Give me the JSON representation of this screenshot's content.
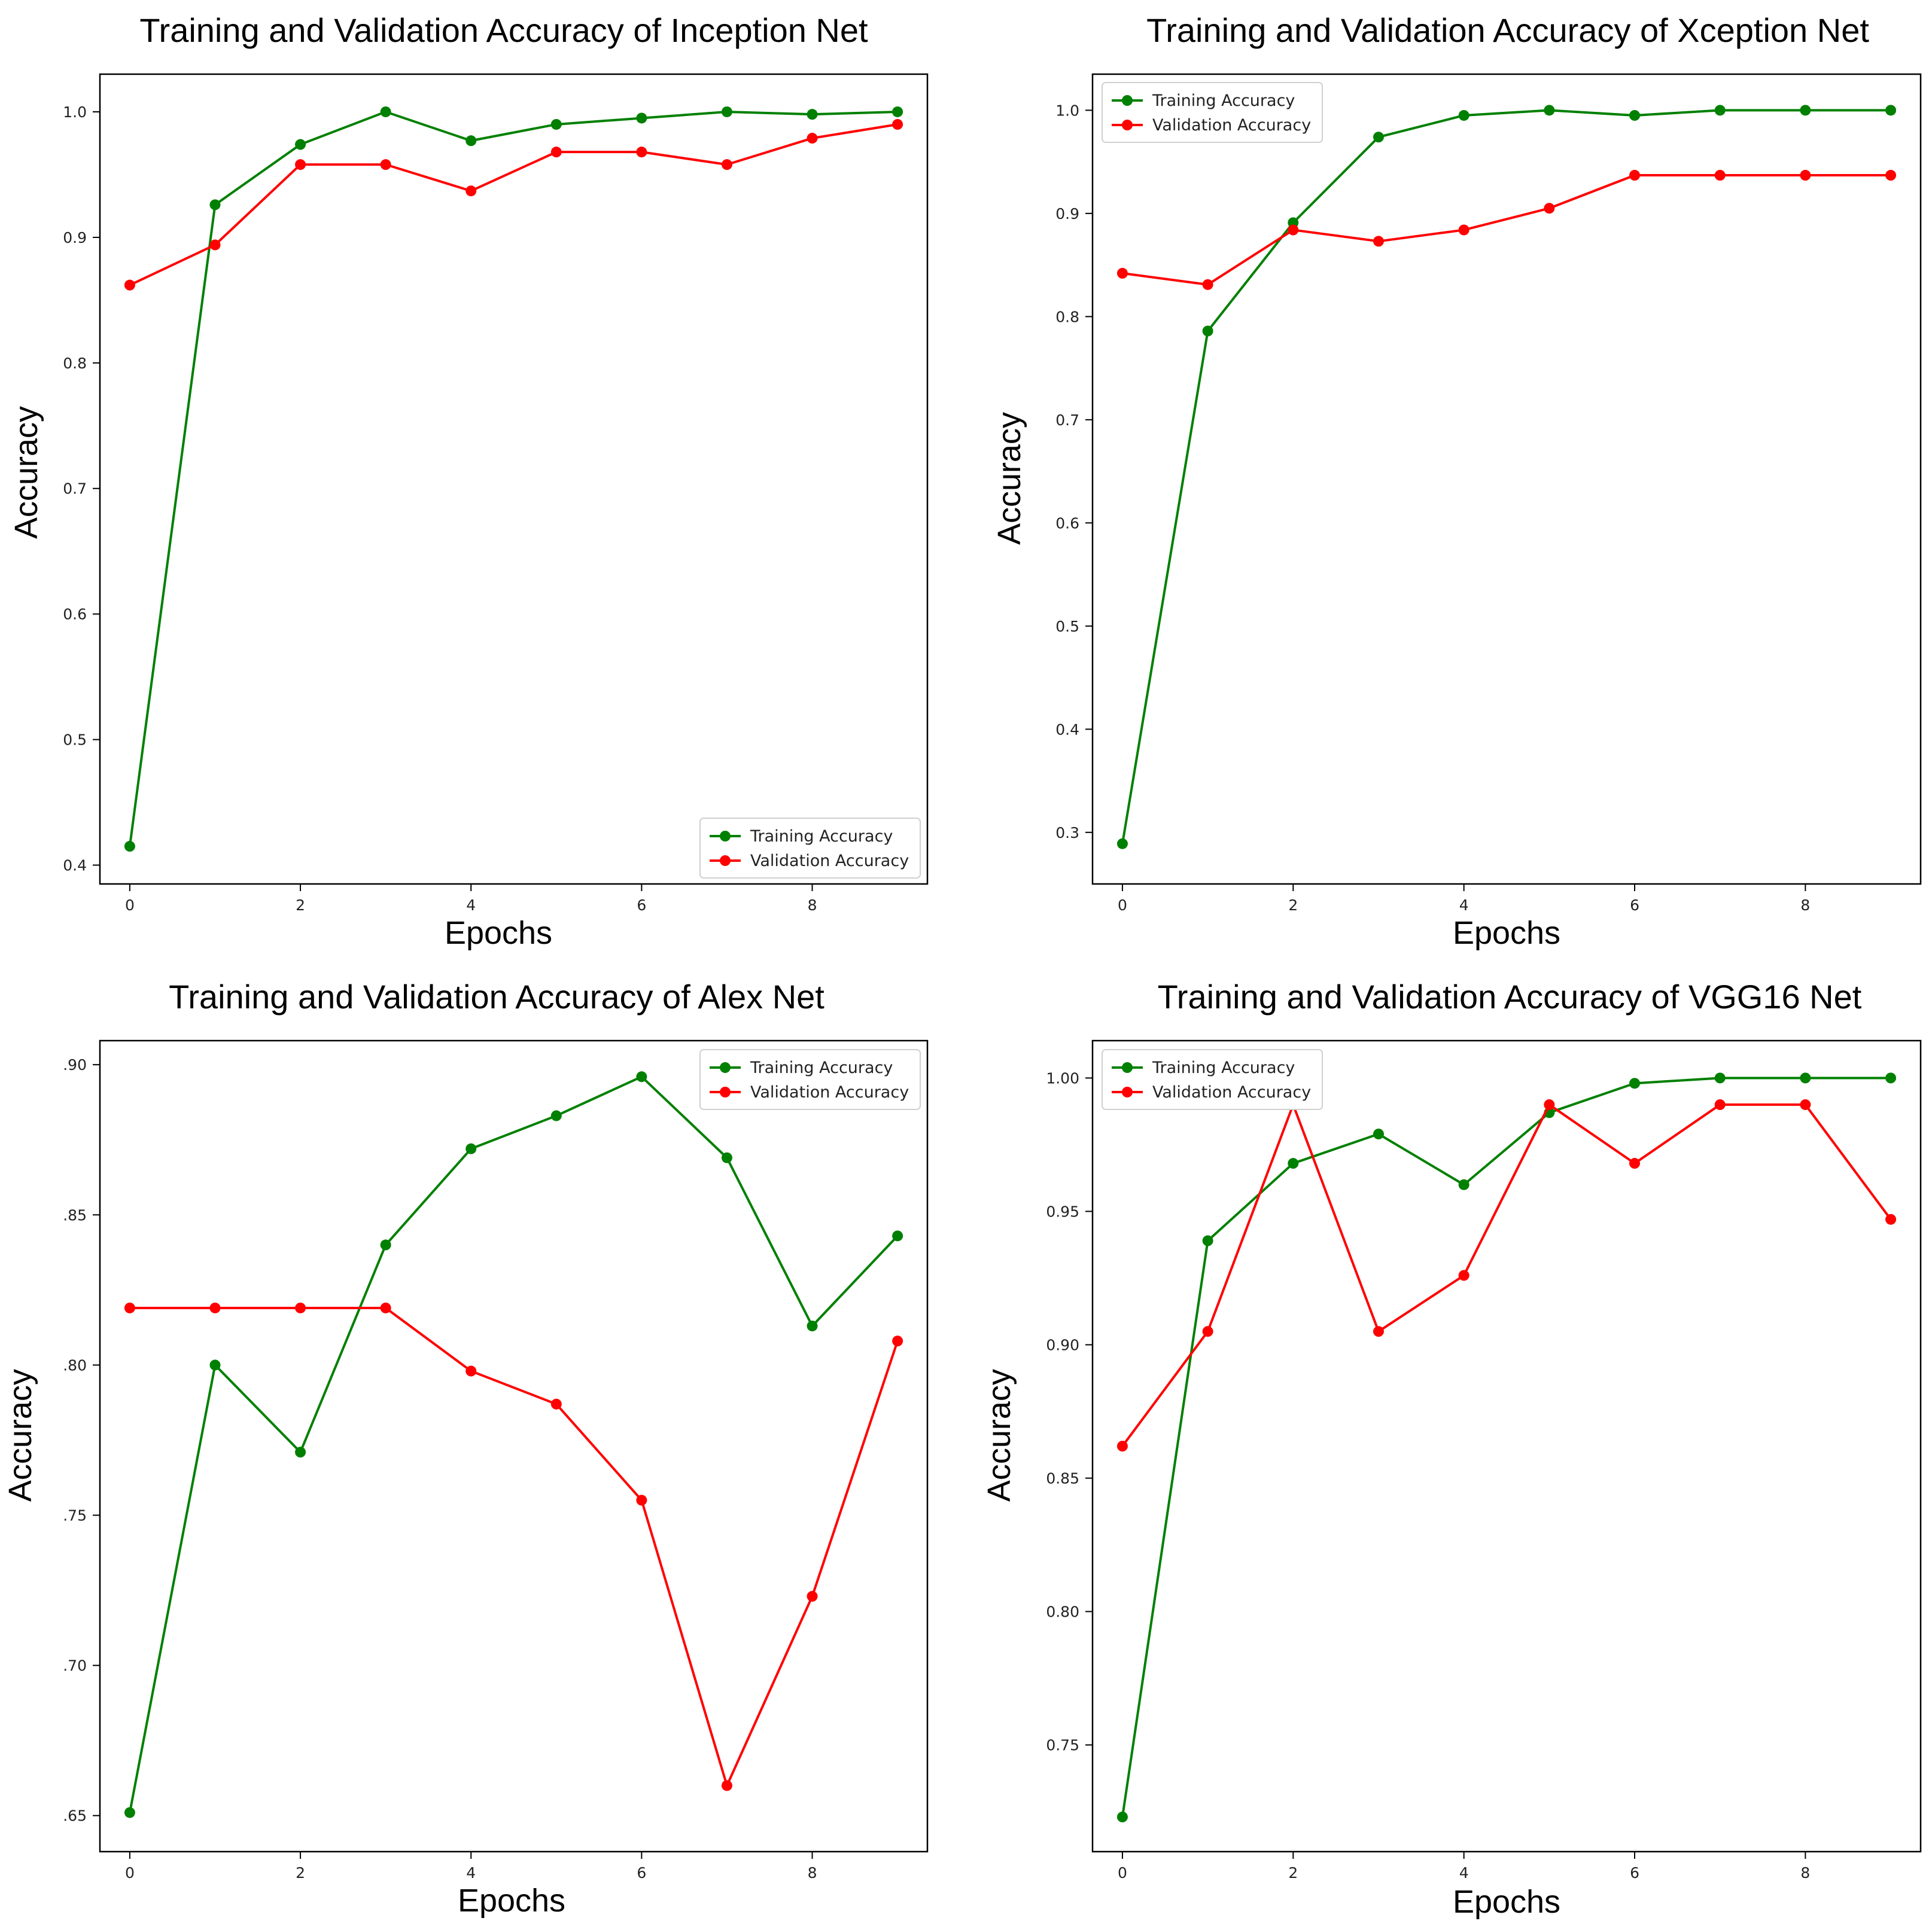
{
  "chart_data": [
    {
      "type": "line",
      "title": "Training and Validation Accuracy of Inception Net",
      "xlabel": "Epochs",
      "ylabel": "Accuracy",
      "x": [
        0,
        1,
        2,
        3,
        4,
        5,
        6,
        7,
        8,
        9
      ],
      "xticks": [
        0,
        2,
        4,
        6,
        8
      ],
      "xtick_labels": [
        "0",
        "2",
        "4",
        "6",
        "8"
      ],
      "xlim": [
        -0.35,
        9.35
      ],
      "ylim": [
        0.385,
        1.03
      ],
      "yticks": [
        0.4,
        0.5,
        0.6,
        0.7,
        0.8,
        0.9,
        1.0
      ],
      "ytick_labels": [
        "0.4",
        "0.5",
        "0.6",
        "0.7",
        "0.8",
        "0.9",
        "1.0"
      ],
      "legend_position": "bottom-right",
      "series": [
        {
          "name": "Training Accuracy",
          "color": "#008000",
          "values": [
            0.415,
            0.926,
            0.974,
            1.0,
            0.977,
            0.99,
            0.995,
            1.0,
            0.998,
            1.0
          ]
        },
        {
          "name": "Validation Accuracy",
          "color": "#ff0000",
          "values": [
            0.862,
            0.894,
            0.958,
            0.958,
            0.937,
            0.968,
            0.968,
            0.958,
            0.979,
            0.99
          ]
        }
      ]
    },
    {
      "type": "line",
      "title": "Training and  Validation Accuracy of Xception Net",
      "xlabel": "Epochs",
      "ylabel": "Accuracy",
      "x": [
        0,
        1,
        2,
        3,
        4,
        5,
        6,
        7,
        8,
        9
      ],
      "xticks": [
        0,
        2,
        4,
        6,
        8
      ],
      "xtick_labels": [
        "0",
        "2",
        "4",
        "6",
        "8"
      ],
      "xlim": [
        -0.35,
        9.35
      ],
      "ylim": [
        0.25,
        1.035
      ],
      "yticks": [
        0.3,
        0.4,
        0.5,
        0.6,
        0.7,
        0.8,
        0.9,
        1.0
      ],
      "ytick_labels": [
        "0.3",
        "0.4",
        "0.5",
        "0.6",
        "0.7",
        "0.8",
        "0.9",
        "1.0"
      ],
      "legend_position": "top-left",
      "series": [
        {
          "name": "Training Accuracy",
          "color": "#008000",
          "values": [
            0.289,
            0.786,
            0.891,
            0.974,
            0.995,
            1.0,
            0.995,
            1.0,
            1.0,
            1.0
          ]
        },
        {
          "name": "Validation Accuracy",
          "color": "#ff0000",
          "values": [
            0.842,
            0.831,
            0.884,
            0.873,
            0.884,
            0.905,
            0.937,
            0.937,
            0.937,
            0.937
          ]
        }
      ]
    },
    {
      "type": "line",
      "title": "Training and Validation Accuracy of Alex Net",
      "xlabel": "Epochs",
      "ylabel": "Accuracy",
      "x": [
        0,
        1,
        2,
        3,
        4,
        5,
        6,
        7,
        8,
        9
      ],
      "xticks": [
        0,
        2,
        4,
        6,
        8
      ],
      "xtick_labels": [
        "0",
        "2",
        "4",
        "6",
        "8"
      ],
      "xlim": [
        -0.35,
        9.35
      ],
      "ylim": [
        0.638,
        0.908
      ],
      "yticks": [
        0.65,
        0.7,
        0.75,
        0.8,
        0.85,
        0.9
      ],
      "ytick_labels": [
        ".65",
        ".70",
        ".75",
        ".80",
        ".85",
        ".90"
      ],
      "legend_position": "top-right",
      "series": [
        {
          "name": "Training Accuracy",
          "color": "#008000",
          "values": [
            0.651,
            0.8,
            0.771,
            0.84,
            0.872,
            0.883,
            0.896,
            0.869,
            0.813,
            0.843
          ]
        },
        {
          "name": "Validation Accuracy",
          "color": "#ff0000",
          "values": [
            0.819,
            0.819,
            0.819,
            0.819,
            0.798,
            0.787,
            0.755,
            0.66,
            0.723,
            0.808
          ]
        }
      ]
    },
    {
      "type": "line",
      "title": "Training and Validation Accuracy of VGG16 Net",
      "xlabel": "Epochs",
      "ylabel": "Accuracy",
      "x": [
        0,
        1,
        2,
        3,
        4,
        5,
        6,
        7,
        8,
        9
      ],
      "xticks": [
        0,
        2,
        4,
        6,
        8
      ],
      "xtick_labels": [
        "0",
        "2",
        "4",
        "6",
        "8"
      ],
      "xlim": [
        -0.35,
        9.35
      ],
      "ylim": [
        0.71,
        1.014
      ],
      "yticks": [
        0.75,
        0.8,
        0.85,
        0.9,
        0.95,
        1.0
      ],
      "ytick_labels": [
        "0.75",
        "0.80",
        "0.85",
        "0.90",
        "0.95",
        "1.00"
      ],
      "legend_position": "top-left",
      "series": [
        {
          "name": "Training Accuracy",
          "color": "#008000",
          "values": [
            0.723,
            0.939,
            0.968,
            0.979,
            0.96,
            0.987,
            0.998,
            1.0,
            1.0,
            1.0
          ]
        },
        {
          "name": "Validation Accuracy",
          "color": "#ff0000",
          "values": [
            0.862,
            0.905,
            0.99,
            0.905,
            0.926,
            0.99,
            0.968,
            0.99,
            0.99,
            0.947
          ]
        }
      ]
    }
  ]
}
